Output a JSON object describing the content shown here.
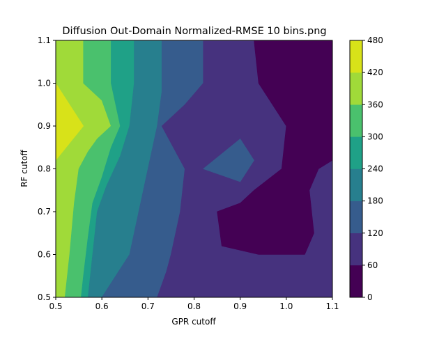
{
  "chart_data": {
    "type": "contour",
    "title": "Diffusion Out-Domain Normalized-RMSE 10 bins.png",
    "xlabel": "GPR cutoff",
    "ylabel": "RF cutoff",
    "xlim": [
      0.5,
      1.1
    ],
    "ylim": [
      0.5,
      1.1
    ],
    "xticks": [
      "0.5",
      "0.6",
      "0.7",
      "0.8",
      "0.9",
      "1.0",
      "1.1"
    ],
    "yticks": [
      "0.5",
      "0.6",
      "0.7",
      "0.8",
      "0.9",
      "1.0",
      "1.1"
    ],
    "colorbar": {
      "levels": [
        0,
        60,
        120,
        180,
        240,
        300,
        360,
        420,
        480
      ],
      "ticks": [
        "0",
        "60",
        "120",
        "180",
        "240",
        "300",
        "360",
        "420",
        "480"
      ],
      "colors": [
        "#440154",
        "#46327e",
        "#365c8d",
        "#277f8e",
        "#1fa187",
        "#4ac16d",
        "#a0da39",
        "#d8e219"
      ]
    },
    "regions": [
      {
        "level_band": [
          360,
          420
        ],
        "points": [
          [
            0.5,
            0.5
          ],
          [
            0.5,
            1.1
          ],
          [
            0.56,
            1.1
          ],
          [
            0.56,
            1.0
          ],
          [
            0.6,
            0.96
          ],
          [
            0.62,
            0.9
          ],
          [
            0.59,
            0.87
          ],
          [
            0.57,
            0.84
          ],
          [
            0.55,
            0.8
          ],
          [
            0.54,
            0.72
          ],
          [
            0.53,
            0.6
          ],
          [
            0.52,
            0.5
          ]
        ]
      },
      {
        "level_band": [
          420,
          480
        ],
        "points": [
          [
            0.5,
            0.82
          ],
          [
            0.5,
            1.0
          ],
          [
            0.56,
            0.9
          ]
        ]
      },
      {
        "level_band": [
          300,
          360
        ],
        "points": [
          [
            0.52,
            0.5
          ],
          [
            0.53,
            0.6
          ],
          [
            0.54,
            0.72
          ],
          [
            0.55,
            0.8
          ],
          [
            0.57,
            0.84
          ],
          [
            0.59,
            0.87
          ],
          [
            0.62,
            0.9
          ],
          [
            0.6,
            0.96
          ],
          [
            0.56,
            1.0
          ],
          [
            0.56,
            1.1
          ],
          [
            0.62,
            1.1
          ],
          [
            0.62,
            1.0
          ],
          [
            0.64,
            0.9
          ],
          [
            0.62,
            0.85
          ],
          [
            0.6,
            0.78
          ],
          [
            0.58,
            0.72
          ],
          [
            0.57,
            0.64
          ],
          [
            0.56,
            0.55
          ],
          [
            0.555,
            0.5
          ]
        ]
      },
      {
        "level_band": [
          240,
          300
        ],
        "points": [
          [
            0.555,
            0.5
          ],
          [
            0.56,
            0.55
          ],
          [
            0.57,
            0.64
          ],
          [
            0.58,
            0.72
          ],
          [
            0.6,
            0.78
          ],
          [
            0.62,
            0.85
          ],
          [
            0.64,
            0.9
          ],
          [
            0.62,
            1.0
          ],
          [
            0.62,
            1.1
          ],
          [
            0.67,
            1.1
          ],
          [
            0.67,
            1.0
          ],
          [
            0.66,
            0.9
          ],
          [
            0.64,
            0.83
          ],
          [
            0.61,
            0.76
          ],
          [
            0.59,
            0.7
          ],
          [
            0.58,
            0.6
          ],
          [
            0.57,
            0.5
          ]
        ]
      },
      {
        "level_band": [
          180,
          240
        ],
        "points": [
          [
            0.57,
            0.5
          ],
          [
            0.58,
            0.6
          ],
          [
            0.59,
            0.7
          ],
          [
            0.61,
            0.76
          ],
          [
            0.64,
            0.83
          ],
          [
            0.66,
            0.9
          ],
          [
            0.67,
            1.0
          ],
          [
            0.67,
            1.1
          ],
          [
            0.73,
            1.1
          ],
          [
            0.73,
            0.98
          ],
          [
            0.72,
            0.9
          ],
          [
            0.7,
            0.8
          ],
          [
            0.68,
            0.7
          ],
          [
            0.66,
            0.6
          ],
          [
            0.63,
            0.55
          ],
          [
            0.6,
            0.5
          ]
        ]
      },
      {
        "level_band": [
          120,
          180
        ],
        "points": [
          [
            0.6,
            0.5
          ],
          [
            0.63,
            0.55
          ],
          [
            0.66,
            0.6
          ],
          [
            0.68,
            0.7
          ],
          [
            0.7,
            0.8
          ],
          [
            0.72,
            0.9
          ],
          [
            0.73,
            0.98
          ],
          [
            0.73,
            1.1
          ],
          [
            0.82,
            1.1
          ],
          [
            0.82,
            1.0
          ],
          [
            0.78,
            0.95
          ],
          [
            0.73,
            0.9
          ],
          [
            0.78,
            0.8
          ],
          [
            0.77,
            0.7
          ],
          [
            0.75,
            0.6
          ],
          [
            0.74,
            0.56
          ],
          [
            0.72,
            0.5
          ]
        ]
      },
      {
        "level_band": [
          60,
          120
        ],
        "points": [
          [
            0.72,
            0.5
          ],
          [
            0.74,
            0.56
          ],
          [
            0.75,
            0.6
          ],
          [
            0.77,
            0.7
          ],
          [
            0.78,
            0.8
          ],
          [
            0.73,
            0.9
          ],
          [
            0.78,
            0.95
          ],
          [
            0.82,
            1.0
          ],
          [
            0.82,
            1.1
          ],
          [
            0.93,
            1.1
          ],
          [
            1.1,
            1.1
          ],
          [
            1.1,
            0.5
          ]
        ]
      },
      {
        "level_band": [
          0,
          60
        ],
        "points": [
          [
            0.93,
            1.1
          ],
          [
            1.1,
            1.1
          ],
          [
            1.1,
            0.82
          ],
          [
            1.07,
            0.8
          ],
          [
            1.05,
            0.75
          ],
          [
            1.06,
            0.65
          ],
          [
            1.04,
            0.6
          ],
          [
            0.94,
            0.6
          ],
          [
            0.86,
            0.62
          ],
          [
            0.85,
            0.7
          ],
          [
            0.9,
            0.72
          ],
          [
            0.93,
            0.75
          ],
          [
            0.99,
            0.8
          ],
          [
            1.0,
            0.9
          ],
          [
            0.94,
            1.0
          ]
        ]
      },
      {
        "level_band": [
          120,
          180
        ],
        "points": [
          [
            0.82,
            0.8
          ],
          [
            0.9,
            0.87
          ],
          [
            0.93,
            0.82
          ],
          [
            0.9,
            0.77
          ]
        ]
      }
    ]
  }
}
